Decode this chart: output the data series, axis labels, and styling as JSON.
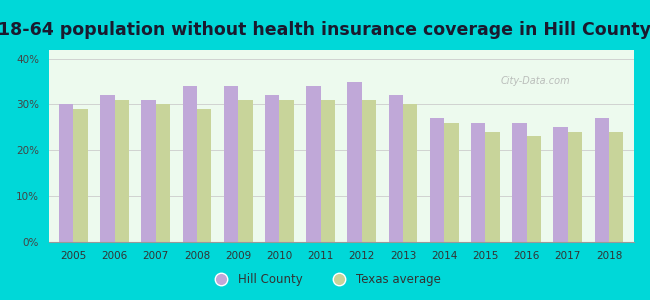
{
  "title": "18-64 population without health insurance coverage in Hill County",
  "years": [
    2005,
    2006,
    2007,
    2008,
    2009,
    2010,
    2011,
    2012,
    2013,
    2014,
    2015,
    2016,
    2017,
    2018
  ],
  "hill_county": [
    30.0,
    32.0,
    31.0,
    34.0,
    34.0,
    32.0,
    34.0,
    35.0,
    32.0,
    27.0,
    26.0,
    26.0,
    25.0,
    27.0
  ],
  "texas_avg": [
    29.0,
    31.0,
    30.0,
    29.0,
    31.0,
    31.0,
    31.0,
    31.0,
    30.0,
    26.0,
    24.0,
    23.0,
    24.0,
    24.0
  ],
  "hill_color": "#c0a8d8",
  "texas_color": "#c8d49a",
  "background_color": "#edfaee",
  "outer_background": "#00d8d8",
  "yticks": [
    0,
    10,
    20,
    30,
    40
  ],
  "ylim": [
    0,
    42
  ],
  "title_fontsize": 12.5,
  "legend_hill": "Hill County",
  "legend_texas": "Texas average",
  "watermark": "City-Data.com"
}
